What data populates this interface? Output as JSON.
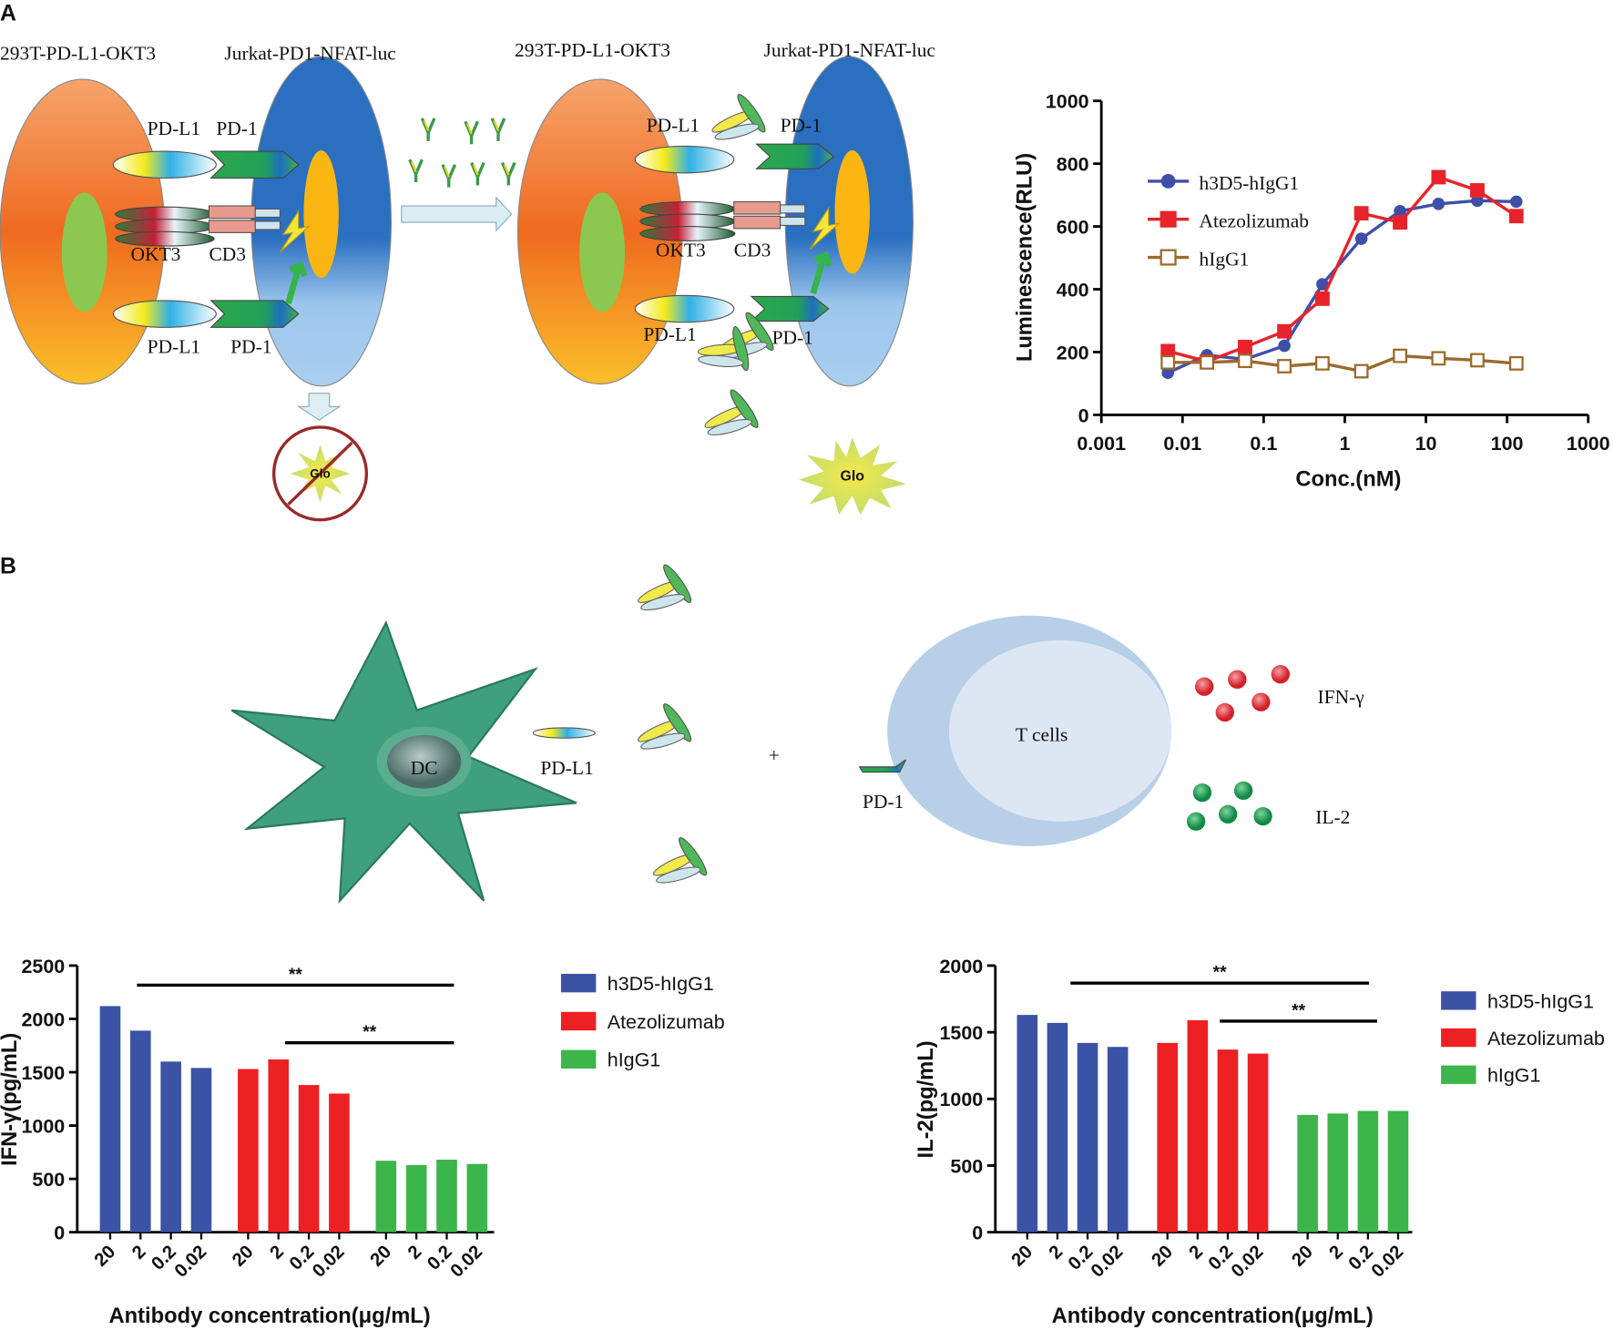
{
  "panel_labels": [
    "A",
    "B"
  ],
  "diagram_a": {
    "left": {
      "cell_1": "293T-PD-L1-OKT3",
      "cell_2": "Jurkat-PD1-NFAT-luc",
      "labels": [
        "PD-L1",
        "PD-1",
        "OKT3",
        "CD3",
        "PD-L1",
        "PD-1"
      ],
      "signal": "Glo"
    },
    "right": {
      "cell_1": "293T-PD-L1-OKT3",
      "cell_2": "Jurkat-PD1-NFAT-luc",
      "labels": [
        "PD-L1",
        "PD-1",
        "OKT3",
        "CD3",
        "PD-L1",
        "PD-1"
      ],
      "signal": "Glo"
    }
  },
  "diagram_b": {
    "dc": "DC",
    "pd_l1": "PD-L1",
    "plus": "+",
    "t_cells": "T cells",
    "pd_1": "PD-1",
    "ifn": "IFN-γ",
    "il2": "IL-2"
  },
  "chart_data": [
    {
      "type": "line",
      "x_label": "Conc.(nM)",
      "y_label": "Luminescence(RLU)",
      "x": [
        0.0066,
        0.02,
        0.059,
        0.18,
        0.53,
        1.6,
        4.8,
        14.3,
        43,
        130
      ],
      "xlim": [
        0.001,
        1000
      ],
      "xticks": [
        0.001,
        0.01,
        0.1,
        1,
        10,
        100,
        1000
      ],
      "x_log": true,
      "ylim": [
        0,
        1000
      ],
      "yticks": [
        0,
        200,
        400,
        600,
        800,
        1000
      ],
      "series": [
        {
          "name": "h3D5-hIgG1",
          "color": "#3f4fa8",
          "marker": "circle",
          "values": [
            134,
            190,
            177,
            220,
            416,
            561,
            649,
            672,
            682,
            679
          ]
        },
        {
          "name": "Atezolizumab",
          "color": "#e8232b",
          "marker": "square",
          "values": [
            203,
            170,
            216,
            266,
            370,
            642,
            613,
            757,
            715,
            633
          ]
        },
        {
          "name": "hIgG1",
          "color": "#9b6a2c",
          "marker": "open-square",
          "values": [
            167,
            167,
            172,
            155,
            164,
            139,
            188,
            180,
            174,
            164
          ]
        }
      ]
    },
    {
      "type": "bar",
      "x_label": "Antibody concentration(μg/mL)",
      "y_label": "IFN-γ(pg/mL)",
      "categories": [
        "20",
        "2",
        "0.2",
        "0.02"
      ],
      "ylim": [
        0,
        2500
      ],
      "yticks": [
        0,
        500,
        1000,
        1500,
        2000,
        2500
      ],
      "annotations": [
        "**",
        "**"
      ],
      "series": [
        {
          "name": "h3D5-hIgG1",
          "color": "#3a53a4",
          "values": [
            2120,
            1890,
            1600,
            1540
          ]
        },
        {
          "name": "Atezolizumab",
          "color": "#ed2024",
          "values": [
            1530,
            1620,
            1380,
            1300
          ]
        },
        {
          "name": "hIgG1",
          "color": "#3cb54a",
          "values": [
            670,
            630,
            680,
            640
          ]
        }
      ]
    },
    {
      "type": "bar",
      "x_label": "Antibody concentration(μg/mL)",
      "y_label": "IL-2(pg/mL)",
      "categories": [
        "20",
        "2",
        "0.2",
        "0.02"
      ],
      "ylim": [
        0,
        2000
      ],
      "yticks": [
        0,
        500,
        1000,
        1500,
        2000
      ],
      "annotations": [
        "**",
        "**"
      ],
      "series": [
        {
          "name": "h3D5-hIgG1",
          "color": "#3a53a4",
          "values": [
            1630,
            1570,
            1420,
            1390
          ]
        },
        {
          "name": "Atezolizumab",
          "color": "#ed2024",
          "values": [
            1420,
            1590,
            1370,
            1340
          ]
        },
        {
          "name": "hIgG1",
          "color": "#3cb54a",
          "values": [
            880,
            890,
            910,
            910
          ]
        }
      ]
    }
  ]
}
